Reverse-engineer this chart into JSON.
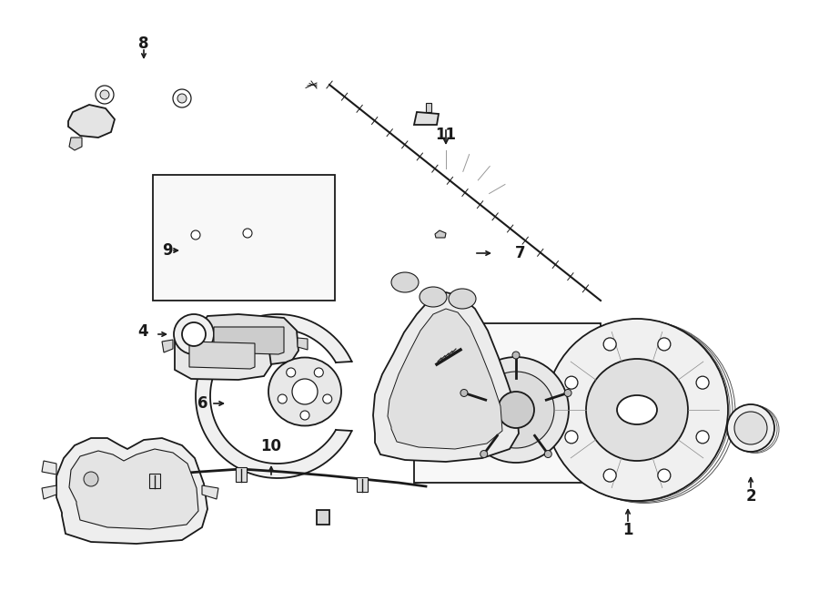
{
  "bg_color": "#ffffff",
  "line_color": "#1a1a1a",
  "lw": 1.3,
  "fig_width": 9.0,
  "fig_height": 6.61,
  "dpi": 100
}
